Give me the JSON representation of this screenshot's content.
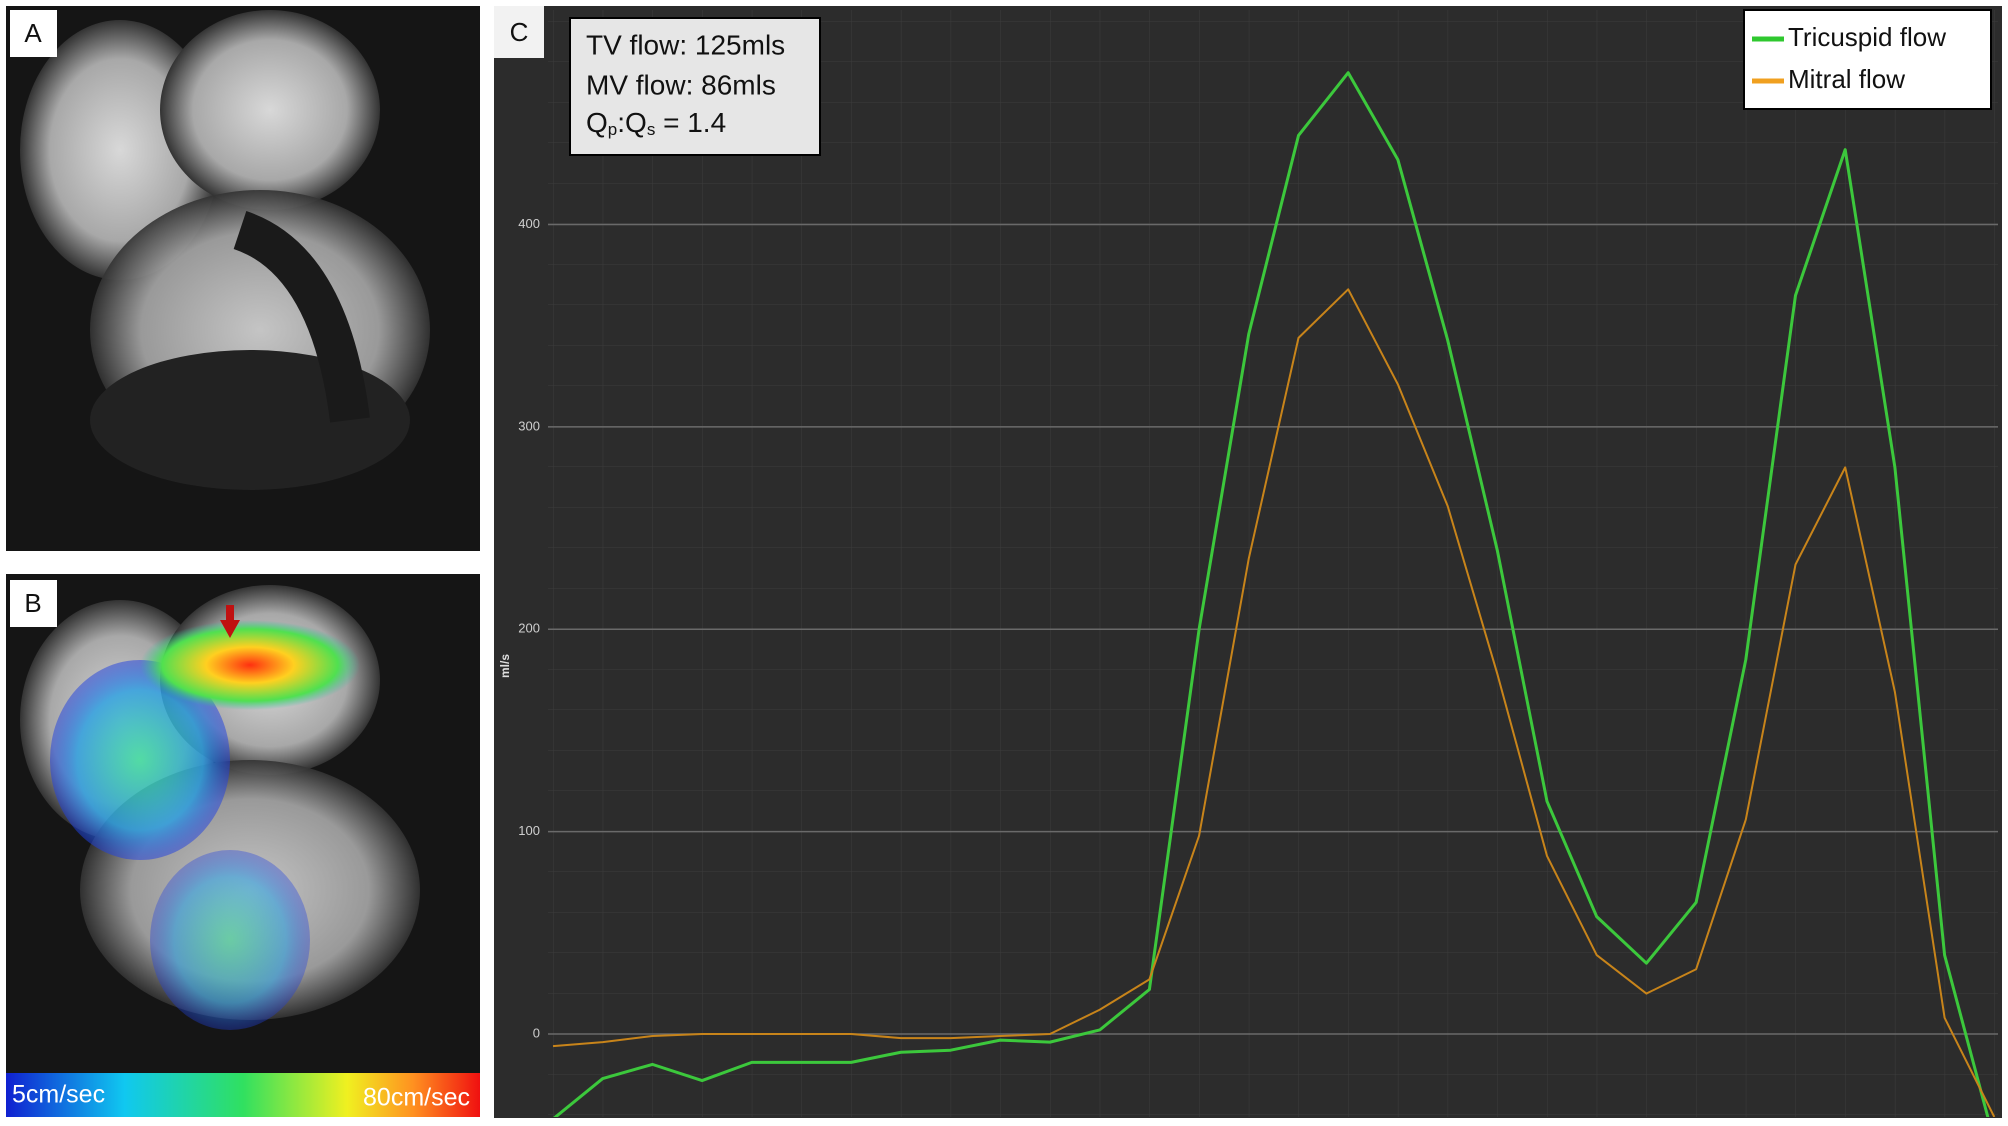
{
  "panels": [
    {
      "label": "A"
    },
    {
      "label": "B",
      "colorbar_labels": [
        "5cm/sec",
        "80cm/sec"
      ]
    }
  ],
  "chart_data": {
    "type": "line",
    "panel_label": "C",
    "y_label": "ml/s",
    "annotations": [
      "TV flow: 125mls",
      "MV flow: 86mls",
      [
        "Q",
        "p",
        ":Q",
        "s",
        " = 1.4"
      ]
    ],
    "ylim": [
      -41,
      506
    ],
    "yticks": [
      0,
      100,
      200,
      300,
      400
    ],
    "grid": true,
    "legend": "upper right",
    "series": [
      {
        "name": "Tricuspid flow",
        "color": "#3cc83c",
        "legend_color": "#2fc82f",
        "values": [
          -42,
          -22,
          -15,
          -23,
          -14,
          -14,
          -14,
          -9,
          -8,
          -3,
          -4,
          2,
          22,
          200,
          346,
          444,
          475,
          432,
          343,
          239,
          115,
          58,
          35,
          65,
          185,
          365,
          437,
          280,
          39,
          -53
        ]
      },
      {
        "name": "Mitral flow",
        "color": "#c8841a",
        "legend_color": "#f0a020",
        "values": [
          -6,
          -4,
          -1,
          0,
          0,
          0,
          0,
          -2,
          -2,
          -1,
          0,
          12,
          27,
          98,
          235,
          344,
          368,
          321,
          261,
          178,
          88,
          39,
          20,
          32,
          106,
          232,
          280,
          169,
          8,
          -41
        ]
      }
    ]
  }
}
